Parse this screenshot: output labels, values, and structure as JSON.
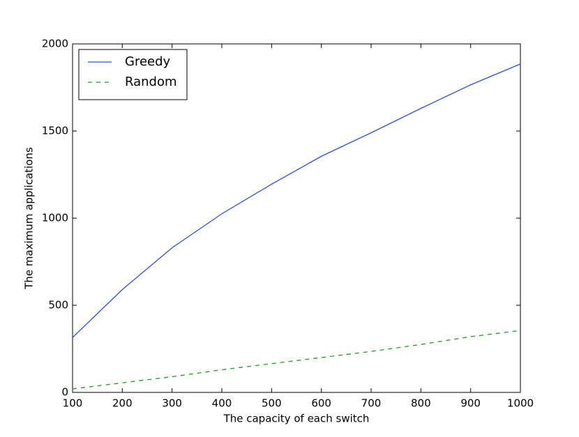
{
  "chart_data": {
    "type": "line",
    "xlabel": "The capacity of each switch",
    "ylabel": "The maximum applications",
    "x": [
      100,
      200,
      300,
      400,
      500,
      600,
      700,
      800,
      900,
      1000
    ],
    "series": [
      {
        "name": "Greedy",
        "color": "#2b4fe8",
        "linestyle": "solid",
        "values": [
          315,
          590,
          830,
          1025,
          1195,
          1355,
          1490,
          1630,
          1765,
          1885
        ]
      },
      {
        "name": "Random",
        "color": "#1f9a1f",
        "linestyle": "dashed",
        "values": [
          20,
          55,
          90,
          130,
          165,
          200,
          235,
          275,
          320,
          355
        ]
      }
    ],
    "xlim": [
      100,
      1000
    ],
    "xticks": [
      100,
      200,
      300,
      400,
      500,
      600,
      700,
      800,
      900,
      1000
    ],
    "ylim": [
      0,
      2000
    ],
    "yticks": [
      0,
      500,
      1000,
      1500,
      2000
    ],
    "grid": false,
    "legend": "upper left"
  }
}
